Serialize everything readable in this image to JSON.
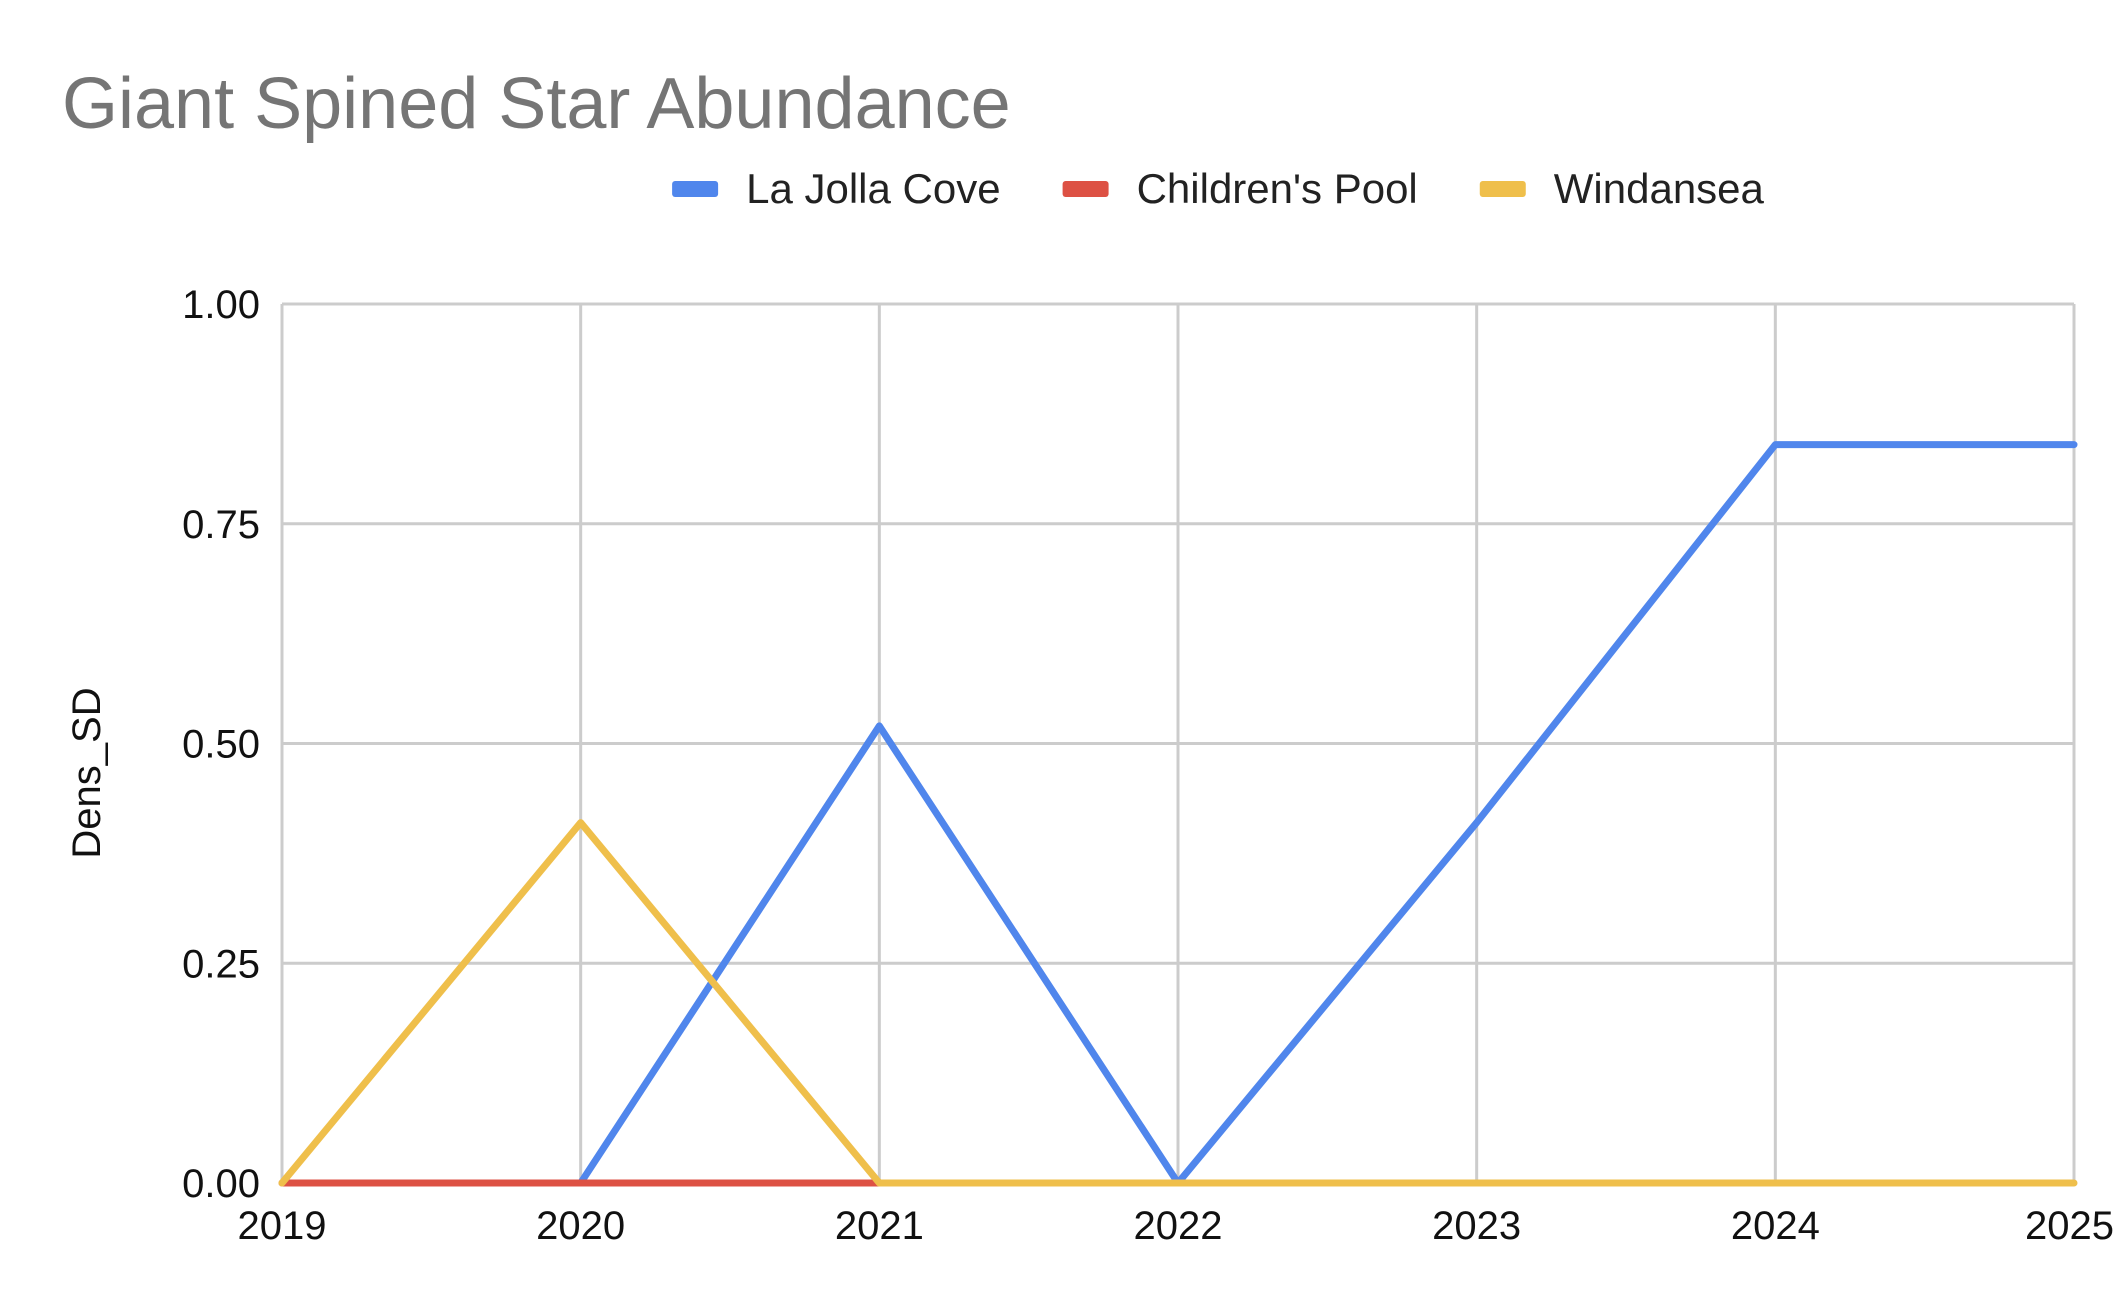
{
  "chart_data": {
    "type": "line",
    "title": "Giant Spined Star Abundance",
    "xlabel": "",
    "ylabel": "Dens_SD",
    "x": [
      "2019",
      "2020",
      "2021",
      "2022",
      "2023",
      "2024",
      "2025"
    ],
    "ylim": [
      0,
      1
    ],
    "yticks": [
      "0.00",
      "0.25",
      "0.50",
      "0.75",
      "1.00"
    ],
    "grid": true,
    "legend_position": "top",
    "series": [
      {
        "name": "La Jolla Cove",
        "color": "#5086ec",
        "values": [
          null,
          0,
          0.52,
          0,
          0.41,
          0.84,
          0.84
        ]
      },
      {
        "name": "Children's Pool",
        "color": "#dd5144",
        "values": [
          0,
          0,
          0,
          null,
          null,
          null,
          null
        ]
      },
      {
        "name": "Windansea",
        "color": "#efbf4b",
        "values": [
          0,
          0.41,
          0,
          0,
          0,
          0,
          0
        ]
      }
    ]
  }
}
